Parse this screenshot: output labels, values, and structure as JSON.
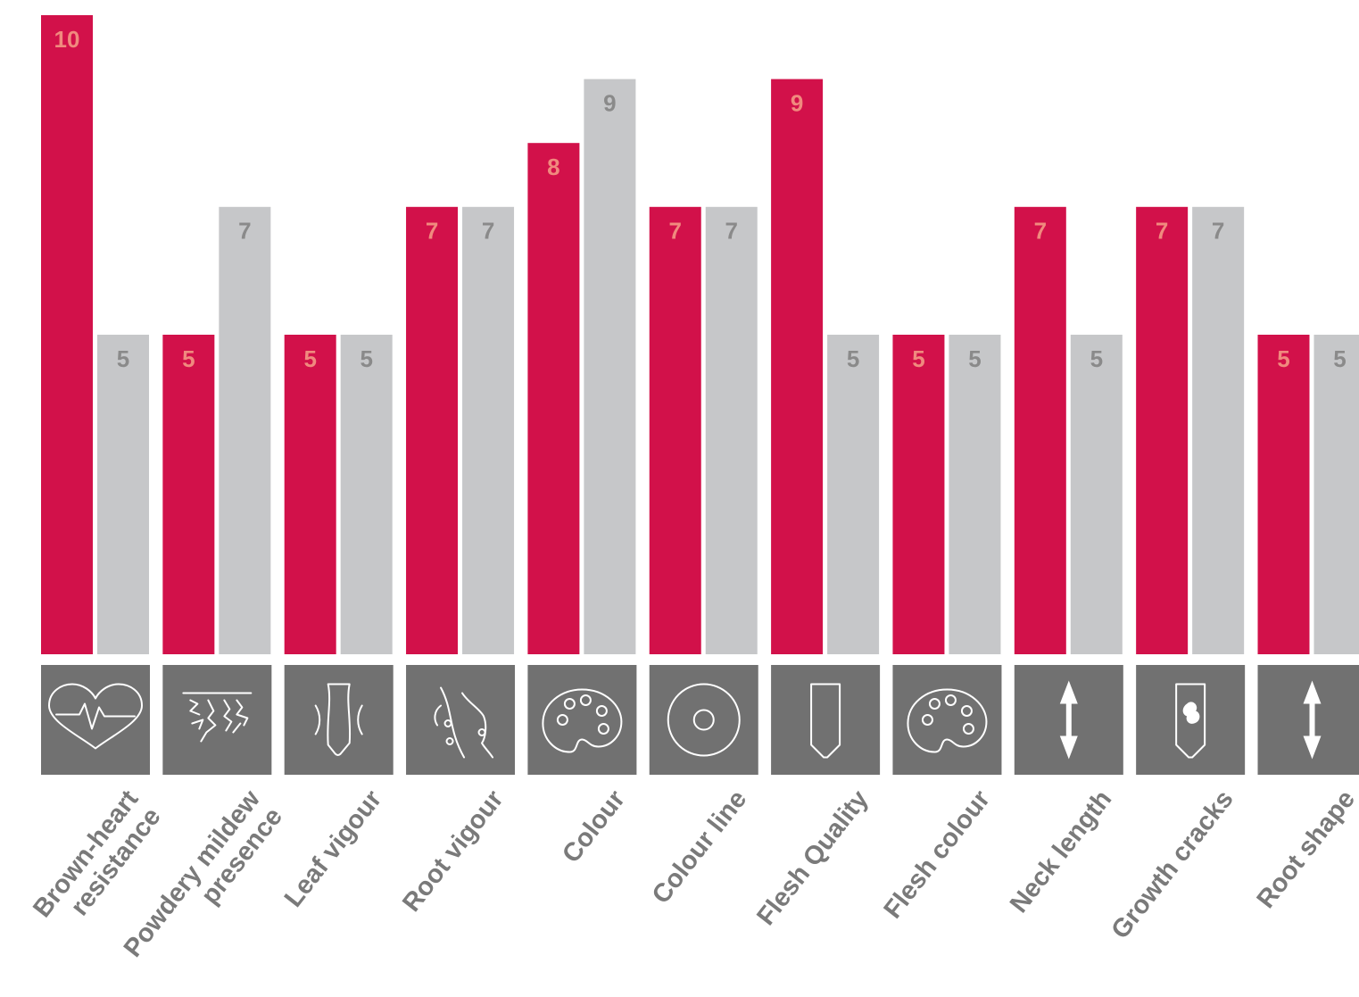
{
  "chart_data": {
    "type": "bar",
    "categories": [
      "Brown-heart resistance",
      "Powdery mildew presence",
      "Leaf vigour",
      "Root vigour",
      "Colour",
      "Colour line",
      "Flesh Quality",
      "Flesh colour",
      "Neck length",
      "Growth cracks",
      "Root shape"
    ],
    "category_label_lines": [
      [
        "Brown-heart",
        "resistance"
      ],
      [
        "Powdery mildew",
        "presence"
      ],
      [
        "Leaf vigour"
      ],
      [
        "Root vigour"
      ],
      [
        "Colour"
      ],
      [
        "Colour line"
      ],
      [
        "Flesh Quality"
      ],
      [
        "Flesh colour"
      ],
      [
        "Neck length"
      ],
      [
        "Growth cracks"
      ],
      [
        "Root shape"
      ]
    ],
    "category_icons": [
      "heart-pulse-icon",
      "soil-cracks-icon",
      "leaf-vigour-icon",
      "root-hairs-icon",
      "palette-icon",
      "cross-section-ring-icon",
      "root-outline-icon",
      "palette-icon",
      "up-down-arrow-icon",
      "cracked-root-icon",
      "up-down-arrow-icon"
    ],
    "series": [
      {
        "values": [
          10,
          5,
          5,
          7,
          8,
          7,
          9,
          5,
          7,
          7,
          5
        ],
        "color": "#d2114a",
        "label_color": "#f08a7e"
      },
      {
        "values": [
          5,
          7,
          5,
          7,
          9,
          7,
          5,
          5,
          5,
          7,
          5
        ],
        "color": "#c6c7c9",
        "label_color": "#8a8a8a"
      }
    ],
    "ylim": [
      0,
      10
    ],
    "title": "",
    "xlabel": "",
    "ylabel": "",
    "grid": false,
    "legend": "none",
    "icon_tile_color": "#717171"
  }
}
